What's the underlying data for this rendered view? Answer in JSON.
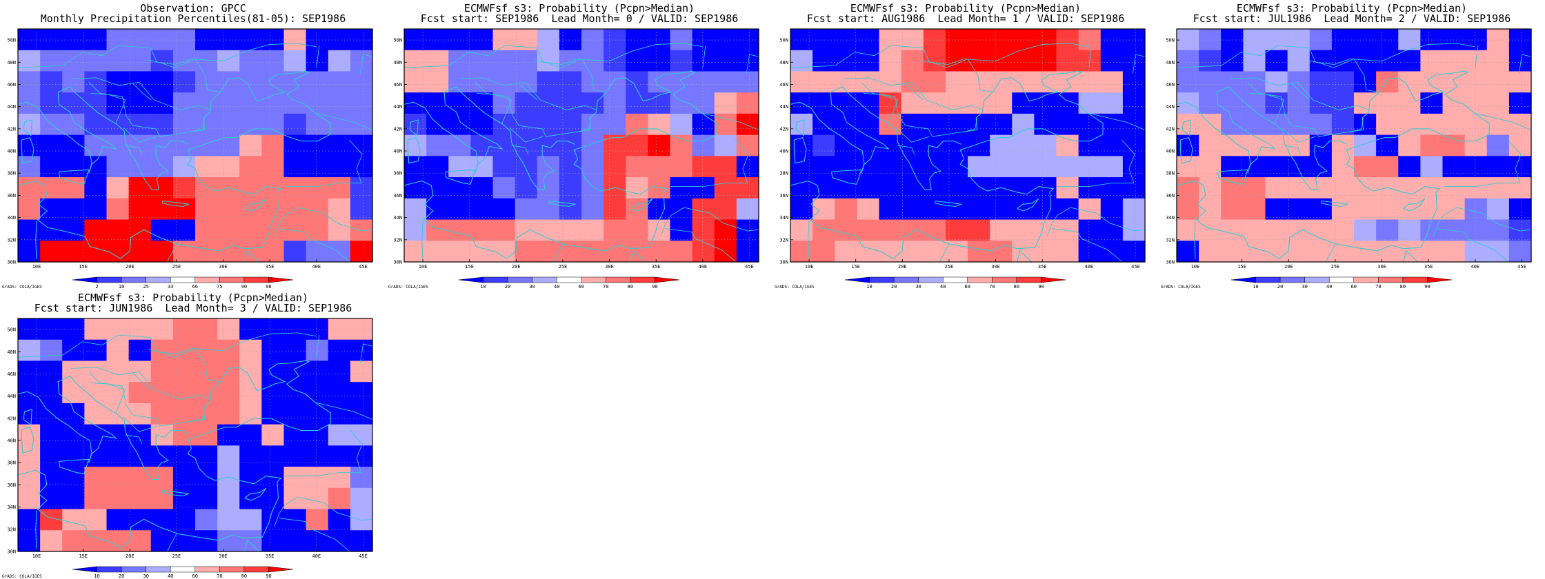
{
  "credit": "GrADS: COLA/IGES",
  "lon_labels": [
    "10E",
    "15E",
    "20E",
    "25E",
    "30E",
    "35E",
    "40E",
    "45E"
  ],
  "lat_labels": [
    "50N",
    "48N",
    "46N",
    "44N",
    "42N",
    "40N",
    "38N",
    "36N",
    "34N",
    "32N",
    "30N"
  ],
  "colorbars": {
    "percentile": {
      "ticks": [
        "2",
        "10",
        "25",
        "33",
        "66",
        "75",
        "90",
        "98"
      ],
      "colors": [
        "#0000ff",
        "#3c3cff",
        "#7777ff",
        "#adadff",
        "#ffffff",
        "#ffadad",
        "#ff7777",
        "#ff3c3c",
        "#ff0000"
      ]
    },
    "probability": {
      "ticks": [
        "10",
        "20",
        "30",
        "40",
        "60",
        "70",
        "80",
        "90"
      ],
      "colors": [
        "#0000ff",
        "#3c3cff",
        "#7777ff",
        "#adadff",
        "#ffffff",
        "#ffadad",
        "#ff7777",
        "#ff3c3c",
        "#ff0000"
      ]
    }
  },
  "colors": {
    "coastline": "#33cccc",
    "grid": "#aaaaaa",
    "frame": "#000000"
  },
  "panels": [
    {
      "title1": "Observation: GPCC",
      "title2": "Monthly Precipitation Percentiles(81-05): SEP1986",
      "colorbar": "percentile",
      "grid": [
        [
          0,
          0,
          0,
          0,
          2,
          2,
          2,
          2,
          0,
          0,
          0,
          0,
          5,
          0,
          0,
          0
        ],
        [
          3,
          2,
          2,
          2,
          2,
          2,
          1,
          2,
          2,
          3,
          2,
          2,
          3,
          0,
          3,
          2
        ],
        [
          2,
          1,
          2,
          1,
          0,
          0,
          0,
          1,
          2,
          2,
          2,
          2,
          2,
          2,
          2,
          2
        ],
        [
          2,
          1,
          1,
          1,
          0,
          0,
          0,
          2,
          2,
          2,
          2,
          2,
          2,
          2,
          2,
          2
        ],
        [
          3,
          2,
          2,
          1,
          1,
          1,
          1,
          2,
          2,
          2,
          2,
          2,
          1,
          2,
          2,
          2
        ],
        [
          0,
          0,
          0,
          2,
          2,
          2,
          2,
          2,
          2,
          2,
          5,
          6,
          0,
          0,
          0,
          0
        ],
        [
          2,
          0,
          0,
          0,
          2,
          2,
          2,
          3,
          5,
          5,
          6,
          6,
          0,
          0,
          0,
          0
        ],
        [
          6,
          6,
          6,
          0,
          5,
          8,
          8,
          7,
          6,
          6,
          6,
          6,
          6,
          6,
          6,
          1
        ],
        [
          6,
          0,
          0,
          0,
          6,
          8,
          8,
          8,
          6,
          6,
          6,
          6,
          6,
          6,
          5,
          1
        ],
        [
          0,
          0,
          0,
          8,
          8,
          8,
          0,
          0,
          6,
          6,
          6,
          6,
          6,
          6,
          5,
          6
        ],
        [
          0,
          8,
          8,
          8,
          8,
          8,
          8,
          6,
          6,
          6,
          6,
          6,
          1,
          2,
          2,
          8
        ]
      ]
    },
    {
      "title1": "ECMWFsf s3: Probability (Pcpn>Median)",
      "title2": "Fcst start: SEP1986  Lead Month= 0 / VALID: SEP1986",
      "colorbar": "probability",
      "grid": [
        [
          0,
          0,
          0,
          0,
          5,
          5,
          3,
          0,
          2,
          1,
          0,
          0,
          2,
          0,
          0,
          0
        ],
        [
          5,
          5,
          2,
          2,
          2,
          2,
          3,
          2,
          2,
          1,
          0,
          0,
          1,
          0,
          0,
          0
        ],
        [
          5,
          5,
          2,
          2,
          2,
          2,
          1,
          1,
          2,
          2,
          1,
          2,
          2,
          2,
          2,
          2
        ],
        [
          0,
          0,
          0,
          0,
          2,
          1,
          1,
          1,
          1,
          2,
          1,
          1,
          2,
          2,
          5,
          6
        ],
        [
          1,
          0,
          0,
          0,
          1,
          1,
          1,
          1,
          2,
          2,
          6,
          5,
          3,
          0,
          6,
          8
        ],
        [
          3,
          2,
          2,
          1,
          1,
          1,
          1,
          1,
          2,
          7,
          7,
          8,
          6,
          2,
          3,
          6
        ],
        [
          0,
          0,
          3,
          3,
          1,
          1,
          2,
          1,
          2,
          7,
          6,
          6,
          6,
          7,
          7,
          0
        ],
        [
          0,
          0,
          0,
          0,
          2,
          1,
          2,
          1,
          2,
          7,
          5,
          6,
          0,
          0,
          7,
          7
        ],
        [
          3,
          0,
          0,
          0,
          0,
          2,
          2,
          1,
          2,
          7,
          6,
          0,
          0,
          7,
          7,
          3
        ],
        [
          3,
          6,
          6,
          6,
          6,
          5,
          5,
          5,
          5,
          6,
          6,
          5,
          0,
          7,
          8,
          0
        ],
        [
          5,
          5,
          5,
          5,
          5,
          6,
          6,
          6,
          6,
          6,
          6,
          6,
          6,
          7,
          8,
          0
        ]
      ]
    },
    {
      "title1": "ECMWFsf s3: Probability (Pcpn>Median)",
      "title2": "Fcst start: AUG1986  Lead Month= 1 / VALID: SEP1986",
      "colorbar": "probability",
      "grid": [
        [
          0,
          0,
          0,
          0,
          5,
          5,
          7,
          8,
          8,
          8,
          8,
          8,
          7,
          6,
          0,
          0
        ],
        [
          3,
          0,
          0,
          0,
          5,
          6,
          7,
          8,
          8,
          8,
          8,
          8,
          7,
          7,
          0,
          0
        ],
        [
          5,
          5,
          5,
          5,
          5,
          6,
          6,
          5,
          5,
          5,
          5,
          5,
          5,
          5,
          5,
          0
        ],
        [
          0,
          0,
          0,
          0,
          7,
          5,
          5,
          5,
          5,
          5,
          0,
          0,
          0,
          3,
          3,
          0
        ],
        [
          3,
          0,
          0,
          0,
          6,
          0,
          0,
          0,
          0,
          0,
          3,
          0,
          0,
          0,
          0,
          0
        ],
        [
          0,
          1,
          0,
          0,
          0,
          0,
          0,
          0,
          0,
          3,
          3,
          3,
          5,
          0,
          0,
          0
        ],
        [
          0,
          0,
          0,
          0,
          0,
          0,
          0,
          0,
          3,
          3,
          3,
          3,
          3,
          3,
          3,
          0
        ],
        [
          0,
          0,
          0,
          0,
          0,
          0,
          0,
          0,
          0,
          0,
          0,
          0,
          5,
          0,
          0,
          0
        ],
        [
          0,
          5,
          6,
          5,
          0,
          0,
          0,
          0,
          0,
          0,
          0,
          0,
          0,
          5,
          0,
          3
        ],
        [
          5,
          6,
          6,
          6,
          6,
          6,
          6,
          7,
          7,
          5,
          5,
          5,
          5,
          0,
          0,
          3
        ],
        [
          6,
          6,
          5,
          5,
          5,
          5,
          5,
          5,
          6,
          6,
          5,
          5,
          5,
          0,
          0,
          0
        ]
      ]
    },
    {
      "title1": "ECMWFsf s3: Probability (Pcpn>Median)",
      "title2": "Fcst start: JUL1986  Lead Month= 2 / VALID: SEP1986",
      "colorbar": "probability",
      "grid": [
        [
          3,
          2,
          0,
          3,
          3,
          3,
          2,
          0,
          0,
          0,
          3,
          0,
          0,
          0,
          5,
          0
        ],
        [
          2,
          1,
          0,
          3,
          0,
          3,
          0,
          0,
          0,
          0,
          0,
          5,
          5,
          5,
          5,
          0
        ],
        [
          2,
          2,
          2,
          2,
          3,
          2,
          1,
          1,
          0,
          6,
          5,
          5,
          5,
          5,
          5,
          5
        ],
        [
          3,
          2,
          2,
          2,
          1,
          2,
          1,
          1,
          5,
          5,
          5,
          0,
          5,
          5,
          5,
          0
        ],
        [
          5,
          5,
          2,
          2,
          2,
          2,
          2,
          1,
          0,
          5,
          5,
          5,
          5,
          5,
          5,
          5
        ],
        [
          0,
          5,
          5,
          5,
          5,
          5,
          0,
          5,
          3,
          0,
          5,
          6,
          6,
          5,
          2,
          5
        ],
        [
          5,
          5,
          0,
          0,
          0,
          0,
          0,
          5,
          6,
          6,
          0,
          3,
          0,
          0,
          0,
          0
        ],
        [
          6,
          5,
          6,
          6,
          5,
          5,
          5,
          5,
          5,
          5,
          5,
          5,
          5,
          5,
          5,
          5
        ],
        [
          6,
          5,
          6,
          6,
          0,
          0,
          0,
          5,
          5,
          5,
          5,
          5,
          5,
          2,
          3,
          0
        ],
        [
          5,
          5,
          5,
          5,
          5,
          5,
          5,
          5,
          3,
          2,
          3,
          2,
          2,
          2,
          2,
          1
        ],
        [
          0,
          5,
          5,
          5,
          5,
          5,
          5,
          5,
          5,
          5,
          5,
          5,
          5,
          3,
          3,
          2
        ]
      ]
    },
    {
      "title1": "ECMWFsf s3: Probability (Pcpn>Median)",
      "title2": "Fcst start: JUN1986  Lead Month= 3 / VALID: SEP1986",
      "colorbar": "probability",
      "grid": [
        [
          0,
          0,
          0,
          5,
          5,
          5,
          5,
          6,
          6,
          5,
          0,
          0,
          0,
          0,
          5,
          5
        ],
        [
          3,
          2,
          0,
          0,
          5,
          0,
          6,
          6,
          6,
          6,
          5,
          0,
          0,
          2,
          0,
          0
        ],
        [
          0,
          0,
          5,
          5,
          5,
          5,
          6,
          6,
          6,
          6,
          5,
          0,
          0,
          0,
          0,
          5
        ],
        [
          0,
          0,
          5,
          5,
          5,
          6,
          6,
          6,
          6,
          6,
          5,
          0,
          0,
          0,
          0,
          0
        ],
        [
          0,
          0,
          0,
          5,
          5,
          5,
          6,
          6,
          6,
          6,
          5,
          0,
          0,
          0,
          0,
          0
        ],
        [
          5,
          0,
          0,
          0,
          0,
          0,
          5,
          6,
          6,
          0,
          0,
          5,
          0,
          0,
          3,
          3
        ],
        [
          5,
          0,
          0,
          0,
          0,
          0,
          0,
          0,
          0,
          3,
          0,
          0,
          0,
          0,
          0,
          0
        ],
        [
          5,
          0,
          0,
          6,
          6,
          6,
          6,
          0,
          0,
          3,
          0,
          0,
          5,
          5,
          5,
          2
        ],
        [
          5,
          0,
          0,
          6,
          6,
          6,
          6,
          0,
          0,
          3,
          0,
          0,
          5,
          5,
          6,
          3
        ],
        [
          0,
          7,
          5,
          5,
          0,
          0,
          0,
          0,
          2,
          3,
          3,
          0,
          0,
          6,
          0,
          3
        ],
        [
          0,
          5,
          6,
          6,
          6,
          6,
          0,
          0,
          0,
          2,
          2,
          0,
          0,
          0,
          0,
          0
        ]
      ]
    }
  ]
}
